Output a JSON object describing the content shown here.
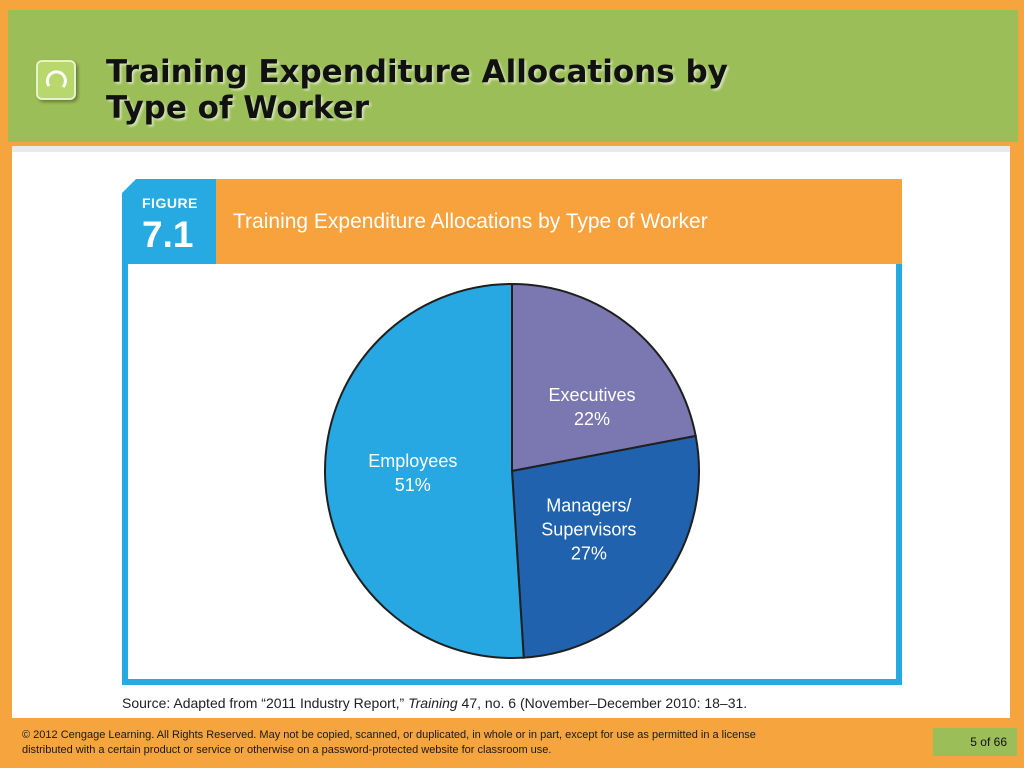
{
  "slide": {
    "title_line1": "Training Expenditure Allocations by",
    "title_line2": "Type of Worker",
    "copyright_symbol": "©",
    "copyright_text": " 2012 Cengage Learning. All Rights Reserved. May not be copied, scanned, or duplicated, in whole or in part, except for use as permitted in a license distributed with a certain product or service or otherwise on a password-protected website for classroom use.",
    "page_current": "5",
    "page_of": "of",
    "page_total": "66"
  },
  "figure": {
    "label_word": "FIGURE",
    "label_number": "7.1",
    "title": "Training Expenditure Allocations by Type of Worker",
    "source_prefix": "Source: Adapted from “2011 Industry Report,” ",
    "source_italic": "Training",
    "source_suffix": " 47, no. 6 (November–December 2010: 18–31."
  },
  "colors": {
    "orange": "#F6A43D",
    "green": "#9BBE58",
    "blue_accent": "#27AAE1"
  },
  "chart_data": {
    "type": "pie",
    "title": "Training Expenditure Allocations by Type of Worker",
    "slices": [
      {
        "label": "Executives",
        "value": 22,
        "value_label": "22%",
        "color": "#7B77B1"
      },
      {
        "label": "Managers/ Supervisors",
        "label_lines": [
          "Managers/",
          "Supervisors"
        ],
        "value": 27,
        "value_label": "27%",
        "color": "#2062AE"
      },
      {
        "label": "Employees",
        "value": 51,
        "value_label": "51%",
        "color": "#28A8E2"
      }
    ]
  }
}
